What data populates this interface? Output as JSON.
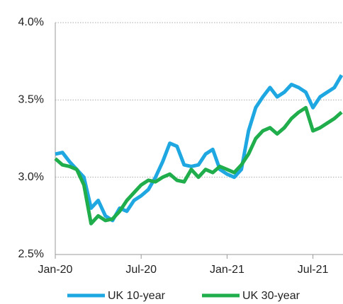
{
  "chart_data": {
    "type": "line",
    "categories": [
      "Jan-20",
      null,
      null,
      null,
      null,
      null,
      null,
      null,
      null,
      null,
      null,
      null,
      "Jul-20",
      null,
      null,
      null,
      null,
      null,
      null,
      null,
      null,
      null,
      null,
      null,
      "Jan-21",
      null,
      null,
      null,
      null,
      null,
      null,
      null,
      null,
      null,
      null,
      null,
      "Jul-21",
      null,
      null,
      null,
      null
    ],
    "series": [
      {
        "name": "UK 10-year",
        "color": "#1ea7e1",
        "values": [
          3.15,
          3.16,
          3.1,
          3.05,
          3.0,
          2.8,
          2.85,
          2.75,
          2.72,
          2.8,
          2.78,
          2.85,
          2.88,
          2.92,
          3.0,
          3.1,
          3.22,
          3.2,
          3.08,
          3.07,
          3.08,
          3.15,
          3.18,
          3.05,
          3.02,
          3.0,
          3.05,
          3.3,
          3.45,
          3.52,
          3.58,
          3.52,
          3.55,
          3.6,
          3.58,
          3.55,
          3.45,
          3.52,
          3.55,
          3.58,
          3.66
        ]
      },
      {
        "name": "UK 30-year",
        "color": "#1fae4b",
        "values": [
          3.12,
          3.08,
          3.07,
          3.05,
          2.95,
          2.7,
          2.75,
          2.72,
          2.73,
          2.78,
          2.85,
          2.9,
          2.95,
          2.98,
          2.97,
          3.0,
          3.02,
          2.98,
          2.97,
          3.05,
          3.0,
          3.05,
          3.03,
          3.07,
          3.05,
          3.03,
          3.08,
          3.15,
          3.25,
          3.3,
          3.32,
          3.28,
          3.32,
          3.38,
          3.42,
          3.45,
          3.3,
          3.32,
          3.35,
          3.38,
          3.42
        ]
      }
    ],
    "ylim": [
      2.5,
      4.0
    ],
    "yticks": [
      {
        "value": 2.5,
        "label": "2.5%"
      },
      {
        "value": 3.0,
        "label": "3.0%"
      },
      {
        "value": 3.5,
        "label": "3.5%"
      },
      {
        "value": 4.0,
        "label": "4.0%"
      }
    ],
    "grid": true,
    "legend": "bottom"
  }
}
